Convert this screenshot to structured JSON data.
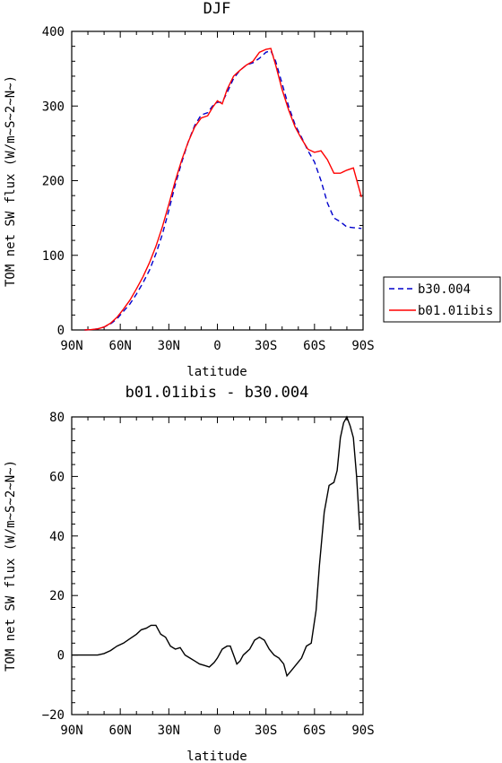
{
  "chart_data": [
    {
      "type": "line",
      "title": "DJF",
      "xlabel": "latitude",
      "ylabel": "TOM net SW flux (W/m~S~2~N~)",
      "xlim": [
        -90,
        90
      ],
      "ylim": [
        0,
        400
      ],
      "x_ticks": [
        -90,
        -60,
        -30,
        0,
        30,
        60,
        90
      ],
      "x_tick_labels": [
        "90N",
        "60N",
        "30N",
        "0",
        "30S",
        "60S",
        "90S"
      ],
      "y_ticks": [
        0,
        100,
        200,
        300,
        400
      ],
      "y_tick_labels": [
        "0",
        "100",
        "200",
        "300",
        "400"
      ],
      "legend_position": "outside-right",
      "series": [
        {
          "name": "b30.004",
          "color": "#0000cc",
          "dash": "dashed",
          "x": [
            -82,
            -78,
            -74,
            -70,
            -66,
            -62,
            -58,
            -54,
            -50,
            -46,
            -42,
            -38,
            -34,
            -30,
            -26,
            -22,
            -18,
            -14,
            -10,
            -6,
            -3,
            0,
            3,
            6,
            10,
            14,
            18,
            22,
            26,
            30,
            33,
            36,
            40,
            44,
            48,
            52,
            56,
            60,
            64,
            68,
            72,
            76,
            80,
            84,
            89
          ],
          "y": [
            0,
            0.5,
            1.5,
            4,
            8,
            15,
            25,
            35,
            48,
            63,
            80,
            102,
            128,
            160,
            195,
            225,
            252,
            274,
            288,
            291,
            300,
            305,
            305,
            318,
            337,
            348,
            355,
            358,
            364,
            372,
            374,
            360,
            330,
            300,
            275,
            258,
            240,
            225,
            200,
            170,
            150,
            145,
            138,
            137,
            136
          ]
        },
        {
          "name": "b01.01ibis",
          "color": "#ff0000",
          "dash": "solid",
          "x": [
            -82,
            -78,
            -74,
            -70,
            -66,
            -62,
            -58,
            -54,
            -50,
            -46,
            -42,
            -38,
            -34,
            -30,
            -26,
            -22,
            -18,
            -14,
            -10,
            -6,
            -3,
            0,
            3,
            6,
            10,
            14,
            18,
            22,
            26,
            30,
            33,
            36,
            40,
            44,
            48,
            52,
            56,
            60,
            64,
            68,
            72,
            76,
            80,
            84,
            89
          ],
          "y": [
            0,
            0.5,
            1.5,
            4,
            9,
            17,
            28,
            40,
            55,
            71,
            90,
            112,
            138,
            168,
            200,
            228,
            252,
            272,
            284,
            287,
            298,
            307,
            303,
            322,
            340,
            348,
            355,
            360,
            372,
            376,
            377,
            355,
            322,
            295,
            272,
            256,
            242,
            238,
            240,
            228,
            210,
            210,
            214,
            217,
            178
          ]
        }
      ]
    },
    {
      "type": "line",
      "title": "b01.01ibis - b30.004",
      "xlabel": "latitude",
      "ylabel": "TOM net SW flux (W/m~S~2~N~)",
      "xlim": [
        -90,
        90
      ],
      "ylim": [
        -20,
        80
      ],
      "x_ticks": [
        -90,
        -60,
        -30,
        0,
        30,
        60,
        90
      ],
      "x_tick_labels": [
        "90N",
        "60N",
        "30N",
        "0",
        "30S",
        "60S",
        "90S"
      ],
      "y_ticks": [
        -20,
        0,
        20,
        40,
        60,
        80
      ],
      "y_tick_labels": [
        "−20",
        "0",
        "20",
        "40",
        "60",
        "80"
      ],
      "series": [
        {
          "color": "#000000",
          "dash": "solid",
          "x": [
            -90,
            -86,
            -82,
            -78,
            -74,
            -70,
            -66,
            -62,
            -58,
            -54,
            -50,
            -47,
            -44,
            -41,
            -38,
            -35,
            -32,
            -29,
            -26,
            -23,
            -20,
            -17,
            -14,
            -11,
            -8,
            -5,
            -2,
            0,
            3,
            6,
            8,
            10,
            12,
            14,
            16,
            18,
            20,
            23,
            26,
            29,
            32,
            35,
            38,
            41,
            43,
            46,
            49,
            52,
            55,
            58,
            61,
            63,
            66,
            69,
            72,
            74,
            76,
            78,
            80,
            82,
            84,
            86,
            88
          ],
          "y": [
            0,
            0,
            0,
            0,
            0,
            0.5,
            1.5,
            3,
            4,
            5.5,
            7,
            8.5,
            9,
            10,
            10,
            7,
            6,
            3,
            2,
            2.5,
            0,
            -1,
            -2,
            -3,
            -3.5,
            -4,
            -2.5,
            -1,
            2,
            3,
            3,
            0,
            -3,
            -2,
            0,
            1,
            2,
            5,
            6,
            5,
            2,
            0,
            -1,
            -3,
            -7,
            -5,
            -3,
            -1,
            3,
            4,
            15,
            30,
            48,
            57,
            58,
            62,
            73,
            78,
            80,
            77,
            73,
            60,
            42
          ]
        }
      ]
    }
  ],
  "legend": {
    "items": [
      {
        "label": "b30.004",
        "color": "#0000cc",
        "dash": "dashed"
      },
      {
        "label": "b01.01ibis",
        "color": "#ff0000",
        "dash": "solid"
      }
    ]
  }
}
